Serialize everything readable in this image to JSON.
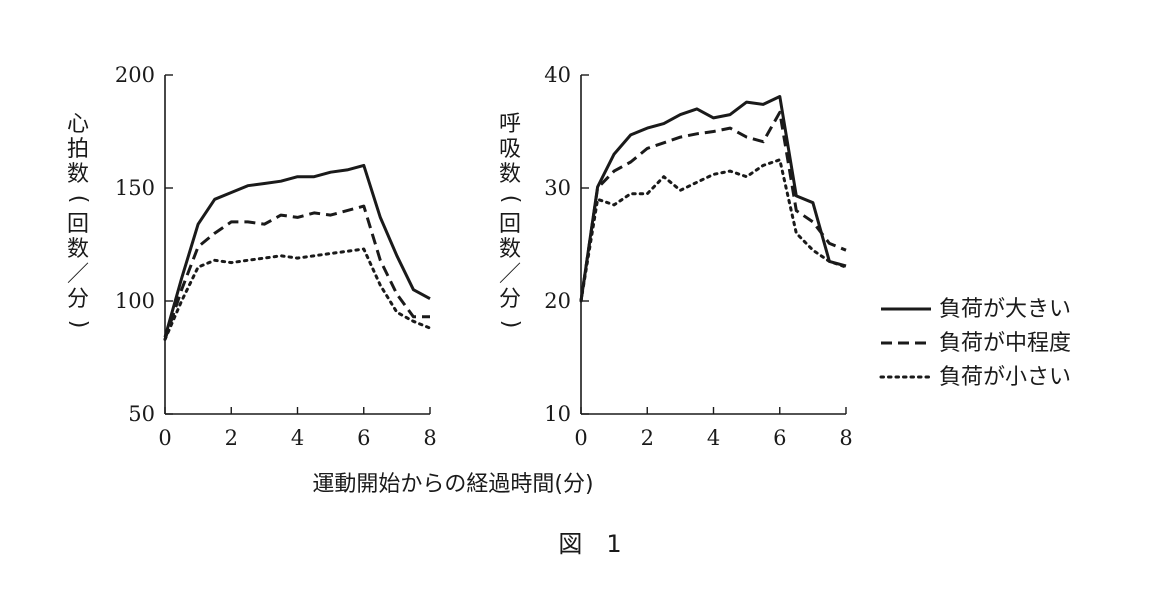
{
  "figure": {
    "caption": "図　1",
    "shared_xlabel": "運動開始からの経過時間(分)"
  },
  "legend": {
    "items": [
      {
        "label": "負荷が大きい",
        "dash": "solid"
      },
      {
        "label": "負荷が中程度",
        "dash": "dashed"
      },
      {
        "label": "負荷が小さい",
        "dash": "dotted"
      }
    ]
  },
  "chart_data": [
    {
      "type": "line",
      "ylabel": "心拍数(回数／分)",
      "xlim": [
        0,
        8
      ],
      "ylim": [
        50,
        200
      ],
      "xticks": [
        0,
        2,
        4,
        6,
        8
      ],
      "yticks": [
        50,
        100,
        150,
        200
      ],
      "series": [
        {
          "name": "負荷が大きい",
          "dash": "solid",
          "x": [
            0,
            0.5,
            1,
            1.5,
            2,
            2.5,
            3,
            3.5,
            4,
            4.5,
            5,
            5.5,
            6,
            6.5,
            7,
            7.5,
            8
          ],
          "y": [
            84,
            110,
            134,
            145,
            148,
            151,
            152,
            153,
            155,
            155,
            157,
            158,
            160,
            137,
            120,
            105,
            101
          ]
        },
        {
          "name": "負荷が中程度",
          "dash": "dashed",
          "x": [
            0,
            0.5,
            1,
            1.5,
            2,
            2.5,
            3,
            3.5,
            4,
            4.5,
            5,
            5.5,
            6,
            6.5,
            7,
            7.5,
            8
          ],
          "y": [
            83,
            105,
            124,
            130,
            135,
            135,
            134,
            138,
            137,
            139,
            138,
            140,
            142,
            118,
            103,
            93,
            93
          ]
        },
        {
          "name": "負荷が小さい",
          "dash": "dotted",
          "x": [
            0,
            0.5,
            1,
            1.5,
            2,
            2.5,
            3,
            3.5,
            4,
            4.5,
            5,
            5.5,
            6,
            6.5,
            7,
            7.5,
            8
          ],
          "y": [
            83,
            100,
            115,
            118,
            117,
            118,
            119,
            120,
            119,
            120,
            121,
            122,
            123,
            107,
            95,
            91,
            88
          ]
        }
      ]
    },
    {
      "type": "line",
      "ylabel": "呼吸数(回数／分)",
      "xlim": [
        0,
        8
      ],
      "ylim": [
        10,
        40
      ],
      "xticks": [
        0,
        2,
        4,
        6,
        8
      ],
      "yticks": [
        10,
        20,
        30,
        40
      ],
      "series": [
        {
          "name": "負荷が大きい",
          "dash": "solid",
          "x": [
            0,
            0.5,
            1,
            1.5,
            2,
            2.5,
            3,
            3.5,
            4,
            4.5,
            5,
            5.5,
            6,
            6.5,
            7,
            7.5,
            8
          ],
          "y": [
            20,
            30.1,
            33,
            34.7,
            35.3,
            35.7,
            36.5,
            37,
            36.2,
            36.5,
            37.6,
            37.4,
            38.1,
            29.3,
            28.7,
            23.5,
            23.1
          ]
        },
        {
          "name": "負荷が中程度",
          "dash": "dashed",
          "x": [
            0,
            0.5,
            1,
            1.5,
            2,
            2.5,
            3,
            3.5,
            4,
            4.5,
            5,
            5.5,
            6,
            6.5,
            7,
            7.5,
            8
          ],
          "y": [
            20,
            30,
            31.5,
            32.3,
            33.5,
            34,
            34.5,
            34.8,
            35,
            35.3,
            34.5,
            34.1,
            36.7,
            28,
            27,
            25.1,
            24.5
          ]
        },
        {
          "name": "負荷が小さい",
          "dash": "dotted",
          "x": [
            0,
            0.5,
            1,
            1.5,
            2,
            2.5,
            3,
            3.5,
            4,
            4.5,
            5,
            5.5,
            6,
            6.5,
            7,
            7.5,
            8
          ],
          "y": [
            20,
            29,
            28.5,
            29.5,
            29.5,
            31,
            29.8,
            30.5,
            31.2,
            31.5,
            31,
            32,
            32.5,
            26,
            24.5,
            23.5,
            23
          ]
        }
      ]
    }
  ]
}
